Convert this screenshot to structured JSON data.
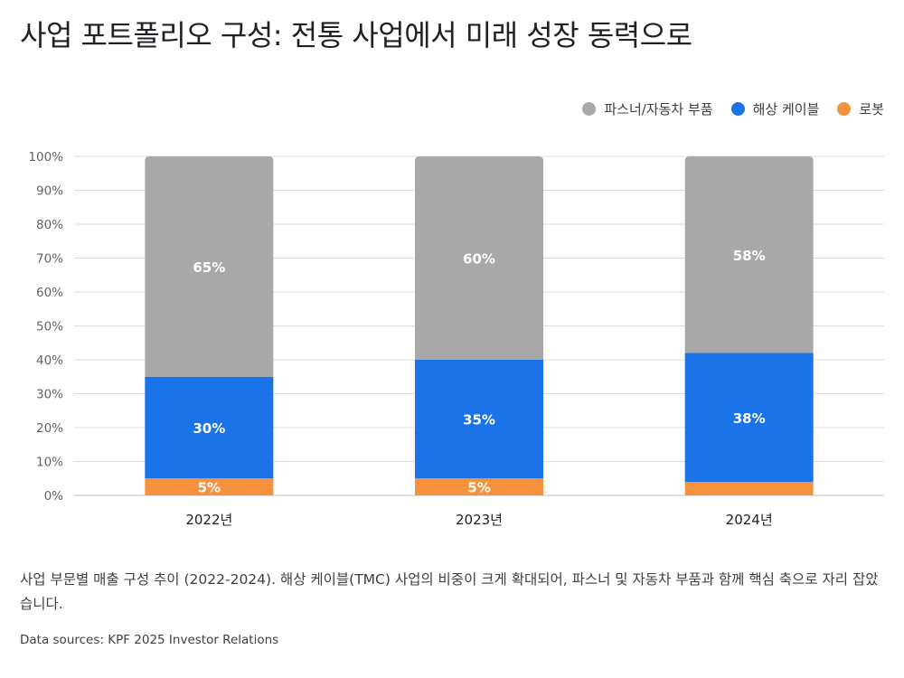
{
  "title": "사업 포트폴리오 구성: 전통 사업에서 미래 성장 동력으로",
  "caption": "사업 부문별 매출 구성 추이 (2022-2024). 해상 케이블(TMC) 사업의 비중이 크게 확대되어, 파스너 및 자동차 부품과 함께 핵심 축으로 자리 잡았습니다.",
  "source": "Data sources: KPF 2025 Investor Relations",
  "colors": {
    "fastener": "#a8a8a8",
    "cable": "#1a73e8",
    "robot": "#f5923e",
    "grid": "#dadce0",
    "axis_text": "#5f6368"
  },
  "chart_data": {
    "type": "bar",
    "stacked": true,
    "title": "사업 포트폴리오 구성: 전통 사업에서 미래 성장 동력으로",
    "xlabel": "",
    "ylabel": "",
    "categories": [
      "2022년",
      "2023년",
      "2024년"
    ],
    "ylim": [
      0,
      100
    ],
    "yticks": [
      "0%",
      "10%",
      "20%",
      "30%",
      "40%",
      "50%",
      "60%",
      "70%",
      "80%",
      "90%",
      "100%"
    ],
    "grid": true,
    "legend_position": "top-right",
    "series": [
      {
        "name": "로봇",
        "color": "#f5923e",
        "values": [
          5,
          5,
          4
        ],
        "labels": [
          "5%",
          "5%",
          ""
        ]
      },
      {
        "name": "해상 케이블",
        "color": "#1a73e8",
        "values": [
          30,
          35,
          38
        ],
        "labels": [
          "30%",
          "35%",
          "38%"
        ]
      },
      {
        "name": "파스너/자동차 부품",
        "color": "#a8a8a8",
        "values": [
          65,
          60,
          58
        ],
        "labels": [
          "65%",
          "60%",
          "58%"
        ]
      }
    ]
  },
  "legend": [
    {
      "label": "파스너/자동차 부품",
      "color": "#a8a8a8"
    },
    {
      "label": "해상 케이블",
      "color": "#1a73e8"
    },
    {
      "label": "로봇",
      "color": "#f5923e"
    }
  ]
}
